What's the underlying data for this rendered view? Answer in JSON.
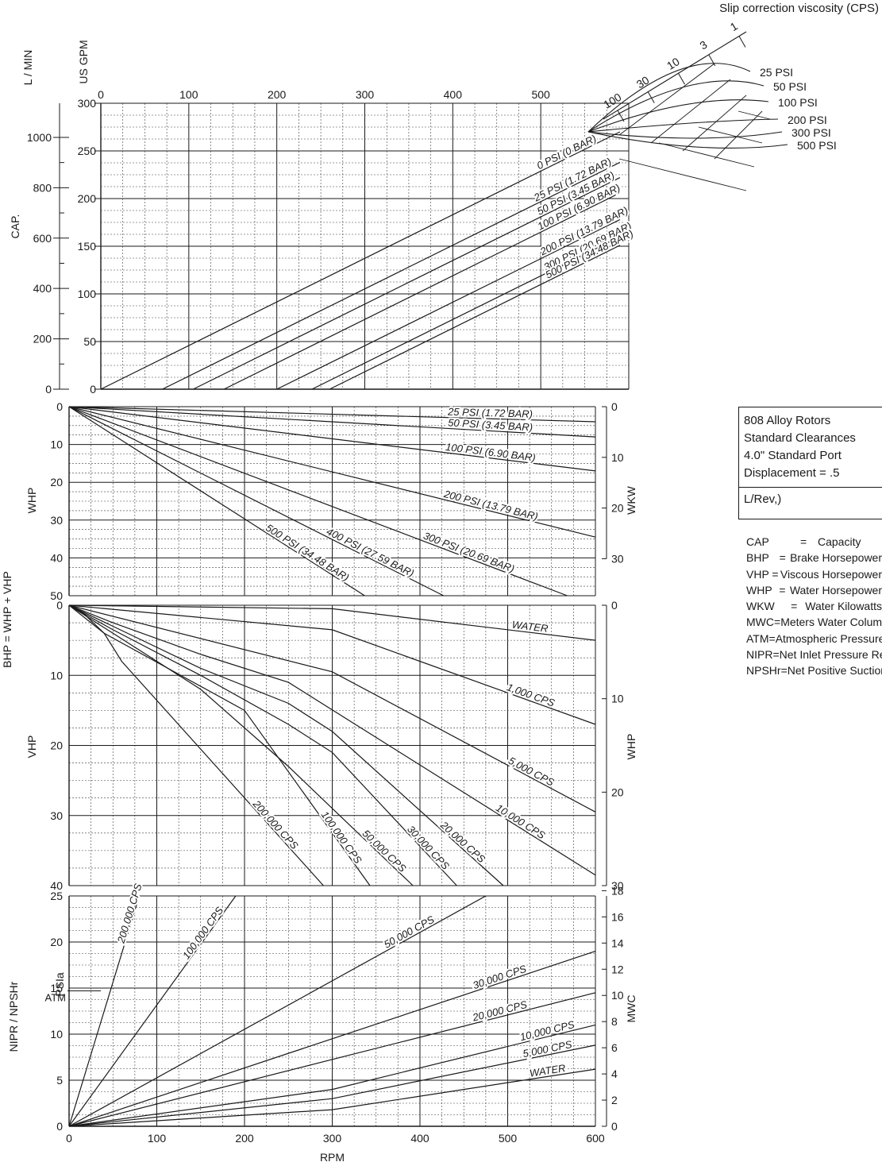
{
  "chart_data": [
    {
      "type": "line",
      "panel": "capacity",
      "xlabel": "RPM",
      "ylabel": "CAP.",
      "left_axis_1_label": "L / MIN",
      "left_axis_2_label": "US GPM",
      "x_ticks": [
        "0",
        "100",
        "200",
        "300",
        "400",
        "500"
      ],
      "xlim": [
        0,
        600
      ],
      "ylim_usgpm": [
        0,
        300
      ],
      "y_ticks_usgpm": [
        "0",
        "50",
        "100",
        "150",
        "200",
        "250",
        "300"
      ],
      "y_ticks_lmin": [
        "0",
        "200",
        "400",
        "600",
        "800",
        "1000"
      ],
      "y_ticks_lmin_values": [
        0,
        200,
        400,
        600,
        800,
        1000
      ],
      "grid": true,
      "series": [
        {
          "name": "0 PSI (0 BAR)",
          "x": [
            0,
            590
          ],
          "y": [
            0,
            270
          ]
        },
        {
          "name": "25 PSI (1.72 BAR)",
          "x": [
            70,
            590
          ],
          "y": [
            0,
            238
          ]
        },
        {
          "name": "50 PSI (3.45 BAR)",
          "x": [
            105,
            590
          ],
          "y": [
            0,
            222
          ]
        },
        {
          "name": "100 PSI (6.90 BAR)",
          "x": [
            140,
            590
          ],
          "y": [
            0,
            206
          ]
        },
        {
          "name": "200 PSI (13.79 BAR)",
          "x": [
            200,
            590
          ],
          "y": [
            0,
            178
          ]
        },
        {
          "name": "300 PSI (20.69 BAR)",
          "x": [
            240,
            590
          ],
          "y": [
            0,
            160
          ]
        },
        {
          "name": "500 PSI (34.48 BAR)",
          "x": [
            260,
            590
          ],
          "y": [
            0,
            151
          ]
        }
      ]
    },
    {
      "type": "line",
      "panel": "water-horsepower",
      "xlabel": "RPM",
      "ylabel": "WHP",
      "right_axis_label": "WKW",
      "xlim": [
        0,
        600
      ],
      "ylim": [
        0,
        50
      ],
      "y_ticks": [
        "0",
        "10",
        "20",
        "30",
        "40",
        "50"
      ],
      "right_ticks": [
        "0",
        "10",
        "20",
        "30"
      ],
      "grid": true,
      "series": [
        {
          "name": "25 PSI (1.72 BAR)",
          "x": [
            0,
            600
          ],
          "y": [
            0,
            4
          ]
        },
        {
          "name": "50 PSI (3.45 BAR)",
          "x": [
            0,
            600
          ],
          "y": [
            0,
            8
          ]
        },
        {
          "name": "100 PSI (6.90 BAR)",
          "x": [
            0,
            600
          ],
          "y": [
            0,
            17
          ]
        },
        {
          "name": "200 PSI (13.79 BAR)",
          "x": [
            0,
            600
          ],
          "y": [
            0,
            34.5
          ]
        },
        {
          "name": "300 PSI (20.69 BAR)",
          "x": [
            0,
            568
          ],
          "y": [
            0,
            50
          ]
        },
        {
          "name": "400 PSI (27.59 BAR)",
          "x": [
            0,
            427
          ],
          "y": [
            0,
            50
          ]
        },
        {
          "name": "500 PSI (34.48 BAR)",
          "x": [
            0,
            337
          ],
          "y": [
            0,
            50
          ]
        }
      ]
    },
    {
      "type": "line",
      "panel": "viscous-horsepower",
      "xlabel": "RPM",
      "ylabel": "VHP",
      "right_axis_label": "WHP",
      "xlim": [
        0,
        600
      ],
      "ylim": [
        0,
        40
      ],
      "y_ticks": [
        "0",
        "10",
        "20",
        "30",
        "40"
      ],
      "right_ticks": [
        "0",
        "10",
        "20",
        "30"
      ],
      "grid": true,
      "series": [
        {
          "name": "WATER",
          "x": [
            0,
            300,
            600
          ],
          "y": [
            0,
            0.5,
            5
          ]
        },
        {
          "name": "1,000 CPS",
          "x": [
            0,
            300,
            600
          ],
          "y": [
            0,
            3.5,
            17
          ]
        },
        {
          "name": "5,000 CPS",
          "x": [
            0,
            300,
            600
          ],
          "y": [
            0,
            9.5,
            29.5
          ]
        },
        {
          "name": "10,000 CPS",
          "x": [
            0,
            50,
            150,
            250,
            600
          ],
          "y": [
            0,
            2.5,
            7,
            11,
            38.5
          ]
        },
        {
          "name": "20,000 CPS",
          "x": [
            0,
            50,
            150,
            250,
            300,
            495
          ],
          "y": [
            0,
            3,
            9,
            14,
            18,
            40
          ]
        },
        {
          "name": "30,000 CPS",
          "x": [
            0,
            50,
            150,
            250,
            300,
            442
          ],
          "y": [
            0,
            3.5,
            10,
            17,
            21,
            40
          ]
        },
        {
          "name": "50,000 CPS",
          "x": [
            0,
            50,
            150,
            250,
            392
          ],
          "y": [
            0,
            4,
            12,
            23,
            40
          ]
        },
        {
          "name": "100,000 CPS",
          "x": [
            0,
            40,
            200,
            343
          ],
          "y": [
            0,
            4,
            15,
            40
          ]
        },
        {
          "name": "200,000 CPS",
          "x": [
            0,
            15,
            40,
            60,
            290
          ],
          "y": [
            0,
            1,
            4,
            8,
            40
          ]
        }
      ]
    },
    {
      "type": "line",
      "panel": "npsh",
      "xlabel": "RPM",
      "ylabel": "NIPR / NPSHr",
      "inner_ylabel": "PSIa",
      "atm_label": "ATM",
      "atm_value": 14.7,
      "right_axis_label": "MWC",
      "xlim": [
        0,
        600
      ],
      "ylim": [
        0,
        25
      ],
      "x_ticks": [
        "0",
        "100",
        "200",
        "300",
        "400",
        "500",
        "600"
      ],
      "y_ticks": [
        "0",
        "5",
        "10",
        "15",
        "20",
        "25"
      ],
      "right_ticks": [
        "0",
        "2",
        "4",
        "6",
        "8",
        "10",
        "12",
        "14",
        "16",
        "18"
      ],
      "grid": true,
      "series": [
        {
          "name": "200,000 CPS",
          "x": [
            0,
            40,
            80
          ],
          "y": [
            0,
            12.5,
            25
          ]
        },
        {
          "name": "100,000 CPS",
          "x": [
            0,
            190
          ],
          "y": [
            0,
            25
          ]
        },
        {
          "name": "50,000 CPS",
          "x": [
            0,
            475
          ],
          "y": [
            0,
            25
          ]
        },
        {
          "name": "30,000 CPS",
          "x": [
            0,
            600
          ],
          "y": [
            0,
            19
          ]
        },
        {
          "name": "20,000 CPS",
          "x": [
            0,
            600
          ],
          "y": [
            0,
            14.5
          ]
        },
        {
          "name": "10,000 CPS",
          "x": [
            0,
            300,
            600
          ],
          "y": [
            0,
            4,
            11
          ]
        },
        {
          "name": "5,000 CPS",
          "x": [
            0,
            300,
            600
          ],
          "y": [
            0,
            3,
            8.8
          ]
        },
        {
          "name": "WATER",
          "x": [
            0,
            300,
            600
          ],
          "y": [
            0,
            1.8,
            6.2
          ]
        }
      ]
    },
    {
      "type": "line",
      "panel": "slip-correction",
      "title": "Slip correction viscosity (CPS)",
      "viscosity_ticks": [
        "1",
        "3",
        "10",
        "30",
        "100"
      ],
      "pressure_labels": [
        "25 PSI",
        "50 PSI",
        "100 PSI",
        "200 PSI",
        "300 PSI",
        "500 PSI"
      ]
    }
  ],
  "bhp_label": "BHP = WHP + VHP",
  "spec_box": {
    "line1": "808 Alloy Rotors",
    "line2": "Standard Clearances",
    "line3": "4.0\" Standard Port",
    "line4": "Displacement = .5",
    "line5": "L/Rev,)"
  },
  "abbreviations": [
    {
      "key": "CAP",
      "eq": "=",
      "value": "Capacity"
    },
    {
      "key": "BHP",
      "eq": "=",
      "value": "Brake Horsepower"
    },
    {
      "key": "VHP",
      "eq": "=",
      "value": "Viscous Horsepower"
    },
    {
      "key": "WHP",
      "eq": "=",
      "value": "Water Horsepower"
    },
    {
      "key": "WKW",
      "eq": "=",
      "value": "Water Kilowatts"
    },
    {
      "key": "MWC",
      "eq": "=",
      "value": "Meters Water Column"
    },
    {
      "key": "ATM",
      "eq": "=",
      "value": "Atmospheric Pressure"
    },
    {
      "key": "NIPR",
      "eq": "=",
      "value": "Net Inlet Pressure Required"
    },
    {
      "key": "NPSHr",
      "eq": "=",
      "value": "Net Positive Suction Head Required"
    }
  ],
  "colors": {
    "ink": "#1a1a1a",
    "grid_minor": "#3c3c3c",
    "background": "#ffffff"
  }
}
